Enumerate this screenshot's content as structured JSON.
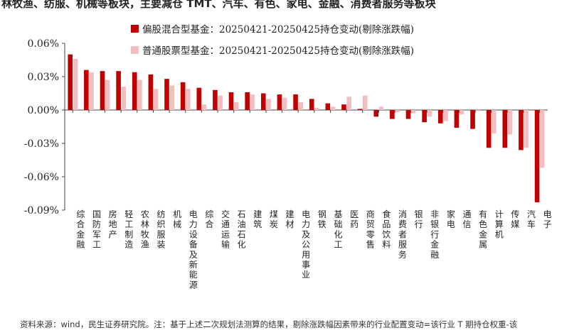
{
  "header": {
    "title": "林牧渔、纺服、机械等板块，主要减仓 TMT、汽车、有色、家电、金融、消费者服务等板块"
  },
  "footer": {
    "source": "资料来源：wind，民生证券研究院。注：基于上述二次规划法测算的结果，剔除涨跌幅因素带来的行业配置变动=该行业 T 期持仓权重-该"
  },
  "chart_data": {
    "type": "bar",
    "ylim": [
      -0.09,
      0.06
    ],
    "yticks": [
      0.06,
      0.03,
      0.0,
      -0.03,
      -0.06,
      -0.09
    ],
    "ytick_labels": [
      "0.06%",
      "0.03%",
      "0.00%",
      "-0.03%",
      "-0.06%",
      "-0.09%"
    ],
    "legend_position": "top-center",
    "colors": {
      "series1": "#c00000",
      "series2": "#f2bfc0"
    },
    "categories": [
      "综合金融",
      "国防军工",
      "房地产",
      "轻工制造",
      "农林牧渔",
      "纺织服装",
      "机械",
      "电力设备及新能源",
      "综合",
      "交通运输",
      "石油石化",
      "建筑",
      "煤炭",
      "建材",
      "电力及公用事业",
      "钢铁",
      "基础化工",
      "医药",
      "商贸零售",
      "食品饮料",
      "消费者服务",
      "银行",
      "非银行金融",
      "家电",
      "通信",
      "有色金属",
      "计算机",
      "传媒",
      "汽车",
      "电子"
    ],
    "series": [
      {
        "name": "偏股混合型基金：20250421-20250425持仓变动(剔除涨跌幅)",
        "values": [
          0.05,
          0.036,
          0.035,
          0.035,
          0.034,
          0.032,
          0.028,
          0.025,
          0.02,
          0.018,
          0.016,
          0.016,
          0.015,
          0.014,
          0.014,
          0.01,
          0.006,
          0.005,
          0.001,
          -0.006,
          -0.008,
          -0.008,
          -0.011,
          -0.012,
          -0.016,
          -0.017,
          -0.034,
          -0.034,
          -0.036,
          -0.083
        ]
      },
      {
        "name": "普通股票型基金：20250421-20250425持仓变动(剔除涨跌幅)",
        "values": [
          0.046,
          0.034,
          0.027,
          0.021,
          0.027,
          0.019,
          0.022,
          0.019,
          0.005,
          0.013,
          0.007,
          0.014,
          0.01,
          0.011,
          0.007,
          0.002,
          0.003,
          0.012,
          0.013,
          0.003,
          -0.002,
          -0.003,
          -0.006,
          -0.01,
          -0.004,
          -0.001,
          -0.021,
          -0.022,
          -0.034,
          -0.052
        ]
      }
    ]
  }
}
